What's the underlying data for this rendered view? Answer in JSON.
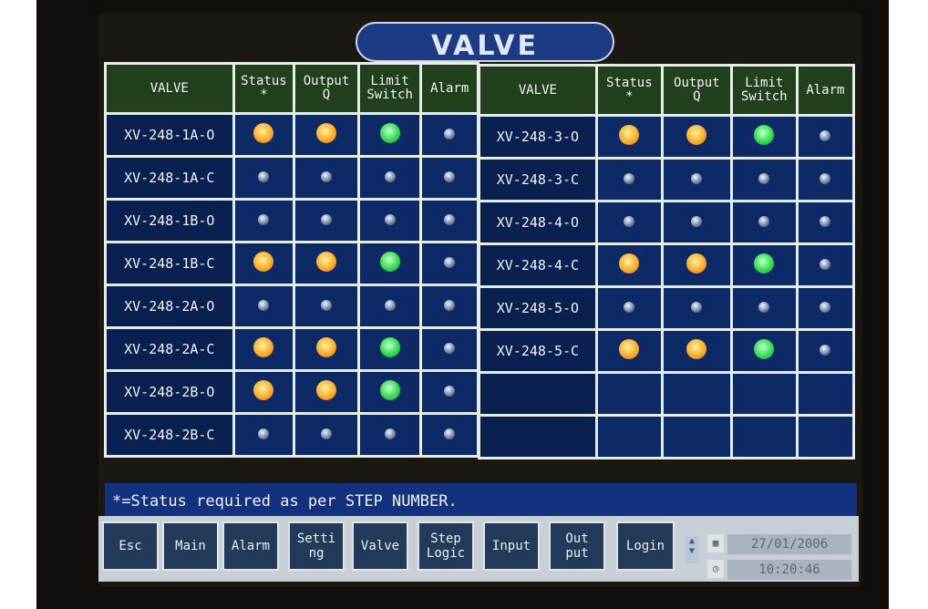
{
  "title": "VALVE",
  "columns": [
    "VALVE",
    "Status\n*",
    "Output\nQ",
    "Limit\nSwitch",
    "Alarm"
  ],
  "colors": {
    "on_status": "#ffb436",
    "on_limit": "#3de05a",
    "off": "#7a88a8",
    "header": "#22401e",
    "body": "#0e2a66"
  },
  "left_rows": [
    {
      "valve": "XV-248-1A-O",
      "lamps": [
        "orange",
        "orange",
        "green",
        "off"
      ]
    },
    {
      "valve": "XV-248-1A-C",
      "lamps": [
        "off",
        "off",
        "off",
        "off"
      ]
    },
    {
      "valve": "XV-248-1B-O",
      "lamps": [
        "off",
        "off",
        "off",
        "off"
      ]
    },
    {
      "valve": "XV-248-1B-C",
      "lamps": [
        "orange",
        "orange",
        "green",
        "off"
      ]
    },
    {
      "valve": "XV-248-2A-O",
      "lamps": [
        "off",
        "off",
        "off",
        "off"
      ]
    },
    {
      "valve": "XV-248-2A-C",
      "lamps": [
        "orange",
        "orange",
        "green",
        "off"
      ]
    },
    {
      "valve": "XV-248-2B-O",
      "lamps": [
        "orange",
        "orange",
        "green",
        "off"
      ]
    },
    {
      "valve": "XV-248-2B-C",
      "lamps": [
        "off",
        "off",
        "off",
        "off"
      ]
    }
  ],
  "right_rows": [
    {
      "valve": "XV-248-3-O",
      "lamps": [
        "orange",
        "orange",
        "green",
        "off"
      ]
    },
    {
      "valve": "XV-248-3-C",
      "lamps": [
        "off",
        "off",
        "off",
        "off"
      ]
    },
    {
      "valve": "XV-248-4-O",
      "lamps": [
        "off",
        "off",
        "off",
        "off"
      ]
    },
    {
      "valve": "XV-248-4-C",
      "lamps": [
        "orange",
        "orange",
        "green",
        "off"
      ]
    },
    {
      "valve": "XV-248-5-O",
      "lamps": [
        "off",
        "off",
        "off",
        "off"
      ]
    },
    {
      "valve": "XV-248-5-C",
      "lamps": [
        "orange",
        "orange",
        "green",
        "off"
      ]
    },
    {
      "valve": "",
      "lamps": []
    },
    {
      "valve": "",
      "lamps": []
    }
  ],
  "note": "*=Status required as per STEP NUMBER.",
  "nav": [
    "Esc",
    "Main",
    "Alarm",
    "Setti\nng",
    "Valve",
    "Step\nLogic",
    "Input",
    "Out\nput",
    "Login"
  ],
  "date": "27/01/2006",
  "time": "10:20:46"
}
